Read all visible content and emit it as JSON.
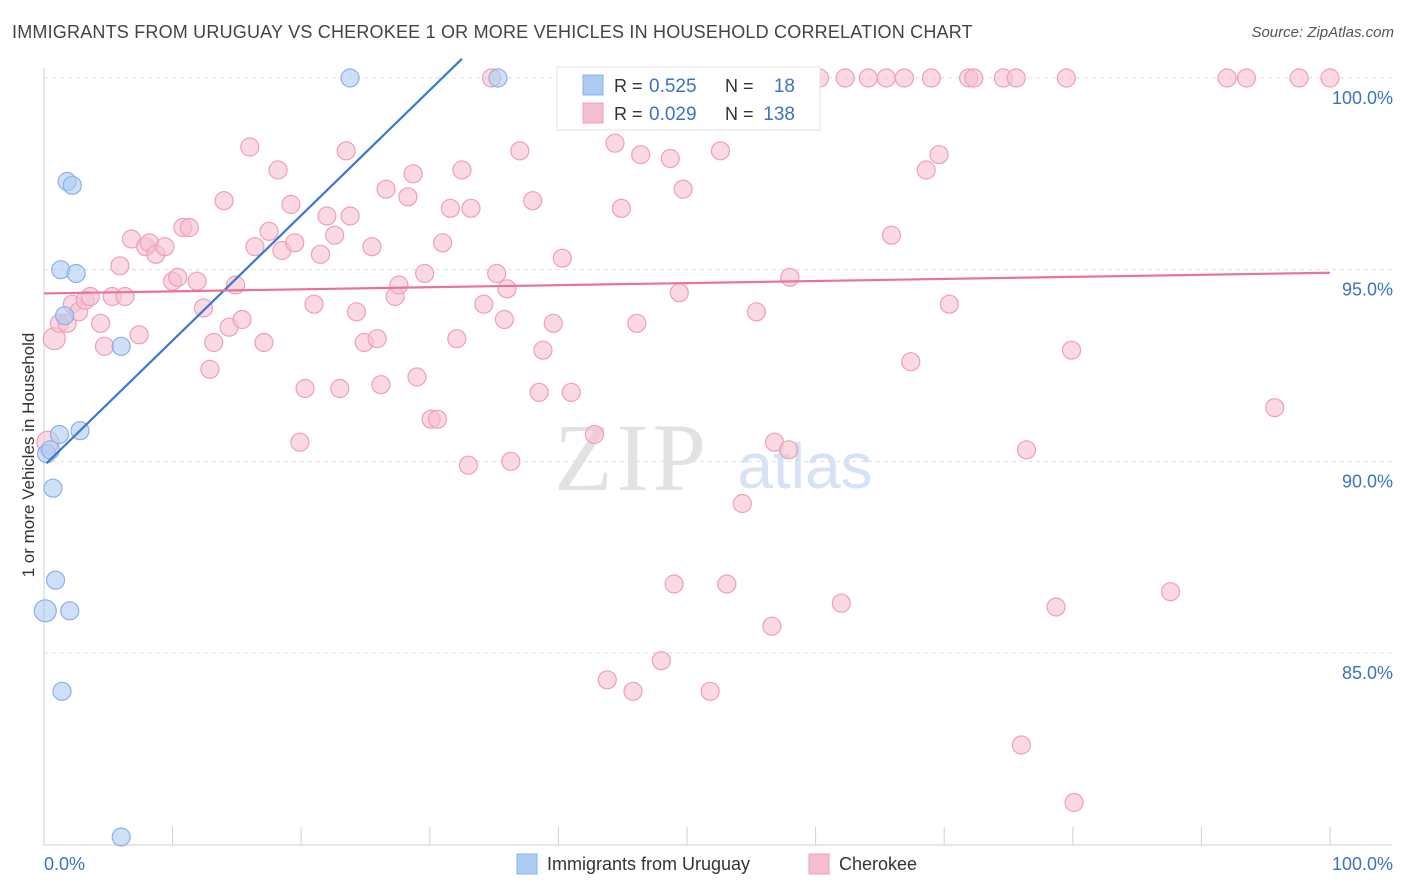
{
  "title": "IMMIGRANTS FROM URUGUAY VS CHEROKEE 1 OR MORE VEHICLES IN HOUSEHOLD CORRELATION CHART",
  "source": "Source: ZipAtlas.com",
  "watermark": {
    "zip": "ZIP",
    "atlas": "atlas"
  },
  "colors": {
    "blue_fill": "#aecbf2",
    "blue_stroke": "#8ab0e8",
    "blue_line": "#3a78d4",
    "pink_fill": "#f6bfd0",
    "pink_stroke": "#ef9fb8",
    "pink_line": "#e8739a",
    "accent_text": "#3b72c4",
    "grid": "#dedede"
  },
  "legend_top": [
    {
      "r_label": "R =",
      "r_value": "0.525",
      "n_label": "N =",
      "n_value": "18",
      "color": "blue"
    },
    {
      "r_label": "R =",
      "r_value": "0.029",
      "n_label": "N =",
      "n_value": "138",
      "color": "pink"
    }
  ],
  "chart_data": {
    "type": "scatter",
    "xlabel": "",
    "ylabel": "1 or more Vehicles in Household",
    "xlim": [
      0,
      100
    ],
    "ylim": [
      80,
      100.5
    ],
    "x_tick_labels": [
      "0.0%",
      "100.0%"
    ],
    "y_ticks": [
      85,
      90,
      95,
      100
    ],
    "y_tick_labels": [
      "85.0%",
      "90.0%",
      "95.0%",
      "100.0%"
    ],
    "grid": true,
    "legend": "bottom-center",
    "series": [
      {
        "name": "Immigrants from Uruguay",
        "color": "blue",
        "r": 0.525,
        "n": 18,
        "trend": {
          "x0": 0.2,
          "y0": 89.95,
          "x1": 32.5,
          "y1": 100.5
        },
        "points": [
          [
            0.1,
            86.1
          ],
          [
            0.2,
            90.2
          ],
          [
            0.5,
            90.3
          ],
          [
            0.7,
            89.3
          ],
          [
            0.9,
            86.9
          ],
          [
            1.2,
            90.7
          ],
          [
            1.3,
            95.0
          ],
          [
            1.4,
            84.0
          ],
          [
            1.6,
            93.8
          ],
          [
            1.8,
            97.3
          ],
          [
            2.0,
            86.1
          ],
          [
            2.2,
            97.2
          ],
          [
            2.5,
            94.9
          ],
          [
            2.8,
            90.8
          ],
          [
            6.0,
            93.0
          ],
          [
            6.0,
            80.2
          ],
          [
            23.8,
            100.0
          ],
          [
            35.3,
            100.0
          ]
        ]
      },
      {
        "name": "Cherokee",
        "color": "pink",
        "r": 0.029,
        "n": 138,
        "trend": {
          "x0": 0,
          "y0": 94.38,
          "x1": 100,
          "y1": 94.92
        },
        "points": [
          [
            0.3,
            90.5
          ],
          [
            0.8,
            93.2
          ],
          [
            1.2,
            93.6
          ],
          [
            1.8,
            93.6
          ],
          [
            2.2,
            94.1
          ],
          [
            2.7,
            93.9
          ],
          [
            3.2,
            94.2
          ],
          [
            3.6,
            94.3
          ],
          [
            4.4,
            93.6
          ],
          [
            4.7,
            93.0
          ],
          [
            5.3,
            94.3
          ],
          [
            5.9,
            95.1
          ],
          [
            6.3,
            94.3
          ],
          [
            6.8,
            95.8
          ],
          [
            7.4,
            93.3
          ],
          [
            7.9,
            95.6
          ],
          [
            8.2,
            95.7
          ],
          [
            8.7,
            95.4
          ],
          [
            9.4,
            95.6
          ],
          [
            10.0,
            94.7
          ],
          [
            10.4,
            94.8
          ],
          [
            10.8,
            96.1
          ],
          [
            11.3,
            96.1
          ],
          [
            11.9,
            94.7
          ],
          [
            12.4,
            94.0
          ],
          [
            12.9,
            92.4
          ],
          [
            13.2,
            93.1
          ],
          [
            14.0,
            96.8
          ],
          [
            14.4,
            93.5
          ],
          [
            14.9,
            94.6
          ],
          [
            15.4,
            93.7
          ],
          [
            16.0,
            98.2
          ],
          [
            16.4,
            95.6
          ],
          [
            17.1,
            93.1
          ],
          [
            17.5,
            96.0
          ],
          [
            18.2,
            97.6
          ],
          [
            18.5,
            95.5
          ],
          [
            19.2,
            96.7
          ],
          [
            19.5,
            95.7
          ],
          [
            19.9,
            90.5
          ],
          [
            20.3,
            91.9
          ],
          [
            21.0,
            94.1
          ],
          [
            21.5,
            95.4
          ],
          [
            22.0,
            96.4
          ],
          [
            22.6,
            95.9
          ],
          [
            23.0,
            91.9
          ],
          [
            23.5,
            98.1
          ],
          [
            23.8,
            96.4
          ],
          [
            24.3,
            93.9
          ],
          [
            24.9,
            93.1
          ],
          [
            25.5,
            95.6
          ],
          [
            25.9,
            93.2
          ],
          [
            26.2,
            92.0
          ],
          [
            26.6,
            97.1
          ],
          [
            27.3,
            94.3
          ],
          [
            27.6,
            94.6
          ],
          [
            28.3,
            96.9
          ],
          [
            28.7,
            97.5
          ],
          [
            29.0,
            92.2
          ],
          [
            29.6,
            94.9
          ],
          [
            30.1,
            91.1
          ],
          [
            30.6,
            91.1
          ],
          [
            31.0,
            95.7
          ],
          [
            31.6,
            96.6
          ],
          [
            32.1,
            93.2
          ],
          [
            32.5,
            97.6
          ],
          [
            33.0,
            89.9
          ],
          [
            33.2,
            96.6
          ],
          [
            34.2,
            94.1
          ],
          [
            34.8,
            100.0
          ],
          [
            35.2,
            94.9
          ],
          [
            35.8,
            93.7
          ],
          [
            36.0,
            94.5
          ],
          [
            36.3,
            90.0
          ],
          [
            37.0,
            98.1
          ],
          [
            38.0,
            96.8
          ],
          [
            38.5,
            91.8
          ],
          [
            38.8,
            92.9
          ],
          [
            39.6,
            93.6
          ],
          [
            40.3,
            95.3
          ],
          [
            41.0,
            91.8
          ],
          [
            42.4,
            98.9
          ],
          [
            42.8,
            90.7
          ],
          [
            43.2,
            100.0
          ],
          [
            43.8,
            84.3
          ],
          [
            44.4,
            98.3
          ],
          [
            44.9,
            96.6
          ],
          [
            45.8,
            84.0
          ],
          [
            46.1,
            93.6
          ],
          [
            46.4,
            98.0
          ],
          [
            47.5,
            100.0
          ],
          [
            48.0,
            84.8
          ],
          [
            48.7,
            97.9
          ],
          [
            49.0,
            86.8
          ],
          [
            49.4,
            94.4
          ],
          [
            49.7,
            97.1
          ],
          [
            51.0,
            100.0
          ],
          [
            51.8,
            84.0
          ],
          [
            52.6,
            98.1
          ],
          [
            53.1,
            86.8
          ],
          [
            54.3,
            88.9
          ],
          [
            55.4,
            93.9
          ],
          [
            56.6,
            85.7
          ],
          [
            56.8,
            90.5
          ],
          [
            57.9,
            90.3
          ],
          [
            58.0,
            94.8
          ],
          [
            59.0,
            100.0
          ],
          [
            59.4,
            100.0
          ],
          [
            60.3,
            100.0
          ],
          [
            62.0,
            86.3
          ],
          [
            62.3,
            100.0
          ],
          [
            64.1,
            100.0
          ],
          [
            65.5,
            100.0
          ],
          [
            65.9,
            95.9
          ],
          [
            66.9,
            100.0
          ],
          [
            67.4,
            92.6
          ],
          [
            68.6,
            97.6
          ],
          [
            69.0,
            100.0
          ],
          [
            69.6,
            98.0
          ],
          [
            70.4,
            94.1
          ],
          [
            71.9,
            100.0
          ],
          [
            72.3,
            100.0
          ],
          [
            74.6,
            100.0
          ],
          [
            75.6,
            100.0
          ],
          [
            76.0,
            82.6
          ],
          [
            76.4,
            90.3
          ],
          [
            78.7,
            86.2
          ],
          [
            79.5,
            100.0
          ],
          [
            79.9,
            92.9
          ],
          [
            80.1,
            81.1
          ],
          [
            87.6,
            86.6
          ],
          [
            92.0,
            100.0
          ],
          [
            93.5,
            100.0
          ],
          [
            95.7,
            91.4
          ],
          [
            97.6,
            100.0
          ],
          [
            100.0,
            100.0
          ]
        ]
      }
    ]
  }
}
